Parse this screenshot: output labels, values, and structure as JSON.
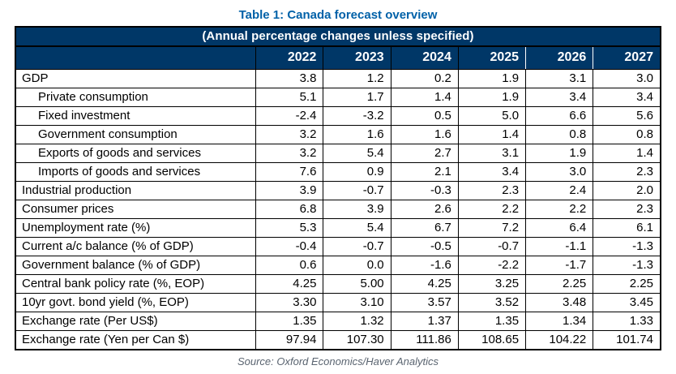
{
  "title": "Table 1: Canada forecast overview",
  "subtitle": "(Annual percentage changes unless specified)",
  "source": "Source: Oxford Economics/Haver Analytics",
  "colors": {
    "title_blue": "#0061a8",
    "header_navy": "#003767",
    "grid_black": "#000000",
    "source_gray": "#5a6470"
  },
  "table": {
    "columns": [
      "2022",
      "2023",
      "2024",
      "2025",
      "2026",
      "2027"
    ],
    "rows": [
      {
        "label": "GDP",
        "indent": false,
        "values": [
          "3.8",
          "1.2",
          "0.2",
          "1.9",
          "3.1",
          "3.0"
        ]
      },
      {
        "label": "Private consumption",
        "indent": true,
        "values": [
          "5.1",
          "1.7",
          "1.4",
          "1.9",
          "3.4",
          "3.4"
        ]
      },
      {
        "label": "Fixed investment",
        "indent": true,
        "values": [
          "-2.4",
          "-3.2",
          "0.5",
          "5.0",
          "6.6",
          "5.6"
        ]
      },
      {
        "label": "Government consumption",
        "indent": true,
        "values": [
          "3.2",
          "1.6",
          "1.6",
          "1.4",
          "0.8",
          "0.8"
        ]
      },
      {
        "label": "Exports of goods and services",
        "indent": true,
        "values": [
          "3.2",
          "5.4",
          "2.7",
          "3.1",
          "1.9",
          "1.4"
        ]
      },
      {
        "label": "Imports of goods and services",
        "indent": true,
        "values": [
          "7.6",
          "0.9",
          "2.1",
          "3.4",
          "3.0",
          "2.3"
        ]
      },
      {
        "label": "Industrial production",
        "indent": false,
        "values": [
          "3.9",
          "-0.7",
          "-0.3",
          "2.3",
          "2.4",
          "2.0"
        ]
      },
      {
        "label": "Consumer prices",
        "indent": false,
        "values": [
          "6.8",
          "3.9",
          "2.6",
          "2.2",
          "2.2",
          "2.3"
        ]
      },
      {
        "label": "Unemployment rate (%)",
        "indent": false,
        "values": [
          "5.3",
          "5.4",
          "6.7",
          "7.2",
          "6.4",
          "6.1"
        ]
      },
      {
        "label": "Current a/c balance (% of GDP)",
        "indent": false,
        "values": [
          "-0.4",
          "-0.7",
          "-0.5",
          "-0.7",
          "-1.1",
          "-1.3"
        ]
      },
      {
        "label": "Government balance (% of GDP)",
        "indent": false,
        "values": [
          "0.6",
          "0.0",
          "-1.6",
          "-2.2",
          "-1.7",
          "-1.3"
        ]
      },
      {
        "label": "Central bank policy rate (%, EOP)",
        "indent": false,
        "values": [
          "4.25",
          "5.00",
          "4.25",
          "3.25",
          "2.25",
          "2.25"
        ]
      },
      {
        "label": "10yr govt. bond yield (%, EOP)",
        "indent": false,
        "values": [
          "3.30",
          "3.10",
          "3.57",
          "3.52",
          "3.48",
          "3.45"
        ]
      },
      {
        "label": "Exchange rate (Per US$)",
        "indent": false,
        "values": [
          "1.35",
          "1.32",
          "1.37",
          "1.35",
          "1.34",
          "1.33"
        ]
      },
      {
        "label": "Exchange rate (Yen per Can $)",
        "indent": false,
        "values": [
          "97.94",
          "107.30",
          "111.86",
          "108.65",
          "104.22",
          "101.74"
        ]
      }
    ]
  }
}
